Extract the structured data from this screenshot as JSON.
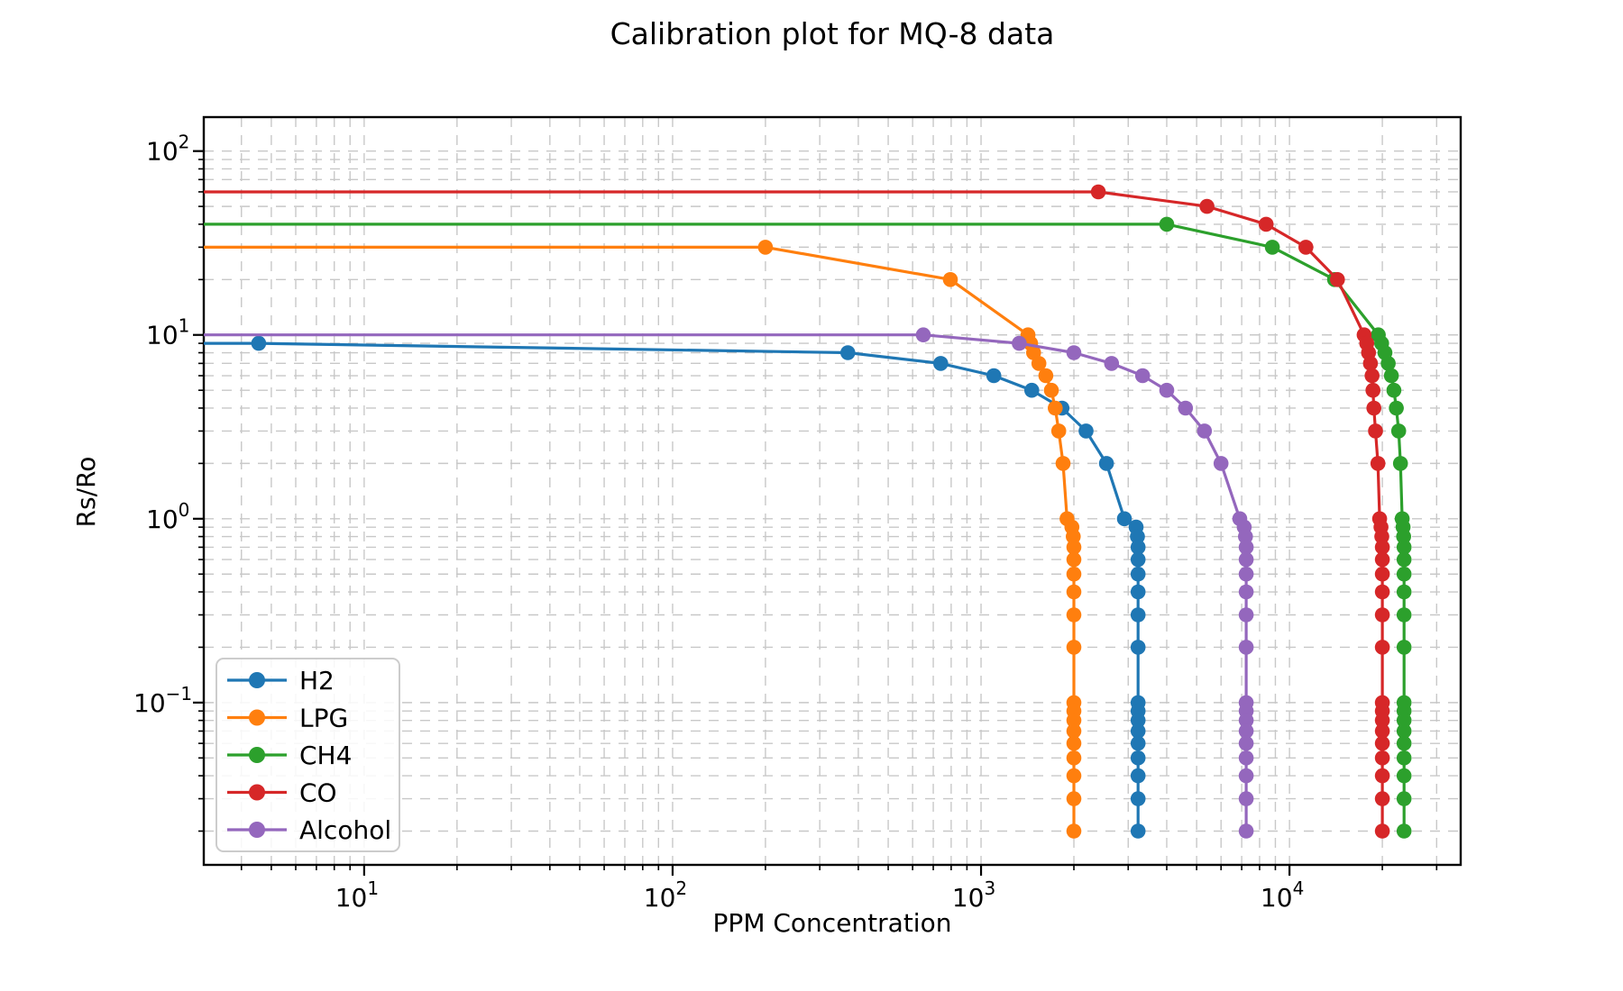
{
  "chart_data": {
    "type": "line",
    "title": "Calibration plot for MQ-8 data",
    "xlabel": "PPM Concentration",
    "ylabel": "Rs/Ro",
    "x_scale": "log",
    "y_scale": "log",
    "xlim": [
      3.02,
      35900
    ],
    "ylim": [
      0.0131,
      153
    ],
    "x_major_tick_exponents": [
      1,
      2,
      3,
      4
    ],
    "y_major_tick_exponents": [
      -1,
      0,
      1,
      2
    ],
    "x_tick_labels": [
      "10^1",
      "10^2",
      "10^3",
      "10^4"
    ],
    "y_tick_labels": [
      "10^-1",
      "10^0",
      "10^1",
      "10^2"
    ],
    "grid": {
      "which": "both",
      "style": "dashed",
      "color": "#c8c8c8"
    },
    "legend_position": "lower-left",
    "marker": "o",
    "rs_ro_marker_ladder": [
      0.02,
      0.03,
      0.04,
      0.05,
      0.06,
      0.07,
      0.08,
      0.09,
      0.1,
      0.2,
      0.3,
      0.4,
      0.5,
      0.6,
      0.7,
      0.8,
      0.9,
      1,
      2,
      3,
      4,
      5,
      6,
      7,
      8,
      9,
      10,
      20,
      30,
      40,
      50,
      60
    ],
    "series": [
      {
        "name": "H2",
        "color": "#1f77b4",
        "max_rs_ro": 9,
        "max_ppm": 3230,
        "points": [
          [
            0.5,
            9
          ],
          [
            4.55,
            9
          ],
          [
            370,
            8
          ],
          [
            740,
            7
          ],
          [
            1100,
            6
          ],
          [
            1460,
            5
          ],
          [
            1830,
            4
          ],
          [
            2190,
            3
          ],
          [
            2550,
            2
          ],
          [
            2915,
            1
          ],
          [
            3182,
            0.9
          ],
          [
            3214,
            0.8
          ],
          [
            3230,
            0.7
          ],
          [
            3230,
            0.6
          ],
          [
            3230,
            0.5
          ],
          [
            3230,
            0.4
          ],
          [
            3230,
            0.3
          ],
          [
            3230,
            0.2
          ],
          [
            3230,
            0.1
          ],
          [
            3230,
            0.09
          ],
          [
            3230,
            0.08
          ],
          [
            3230,
            0.07
          ],
          [
            3230,
            0.06
          ],
          [
            3230,
            0.05
          ],
          [
            3230,
            0.04
          ],
          [
            3230,
            0.03
          ],
          [
            3230,
            0.02
          ]
        ]
      },
      {
        "name": "LPG",
        "color": "#ff7f0e",
        "max_rs_ro": 30,
        "max_ppm": 2000,
        "points": [
          [
            0.5,
            30
          ],
          [
            200,
            30
          ],
          [
            795,
            20
          ],
          [
            1420,
            10
          ],
          [
            1448,
            9
          ],
          [
            1480,
            8
          ],
          [
            1540,
            7
          ],
          [
            1622,
            6
          ],
          [
            1690,
            5
          ],
          [
            1740,
            4
          ],
          [
            1786,
            3
          ],
          [
            1845,
            2
          ],
          [
            1900,
            1
          ],
          [
            1970,
            0.9
          ],
          [
            1990,
            0.8
          ],
          [
            2000,
            0.7
          ],
          [
            2000,
            0.6
          ],
          [
            2000,
            0.5
          ],
          [
            2000,
            0.4
          ],
          [
            2000,
            0.3
          ],
          [
            2000,
            0.2
          ],
          [
            2000,
            0.1
          ],
          [
            2000,
            0.09
          ],
          [
            2000,
            0.08
          ],
          [
            2000,
            0.07
          ],
          [
            2000,
            0.06
          ],
          [
            2000,
            0.05
          ],
          [
            2000,
            0.04
          ],
          [
            2000,
            0.03
          ],
          [
            2000,
            0.02
          ]
        ]
      },
      {
        "name": "CH4",
        "color": "#2ca02c",
        "max_rs_ro": 40,
        "max_ppm": 23520,
        "points": [
          [
            0.5,
            40
          ],
          [
            4000,
            40
          ],
          [
            8800,
            30
          ],
          [
            14000,
            20
          ],
          [
            19400,
            10
          ],
          [
            19900,
            9
          ],
          [
            20400,
            8
          ],
          [
            20900,
            7
          ],
          [
            21400,
            6
          ],
          [
            21800,
            5
          ],
          [
            22200,
            4
          ],
          [
            22600,
            3
          ],
          [
            22900,
            2
          ],
          [
            23200,
            1
          ],
          [
            23350,
            0.9
          ],
          [
            23450,
            0.8
          ],
          [
            23520,
            0.7
          ],
          [
            23520,
            0.6
          ],
          [
            23520,
            0.5
          ],
          [
            23520,
            0.4
          ],
          [
            23520,
            0.3
          ],
          [
            23520,
            0.2
          ],
          [
            23520,
            0.1
          ],
          [
            23520,
            0.09
          ],
          [
            23520,
            0.08
          ],
          [
            23520,
            0.07
          ],
          [
            23520,
            0.06
          ],
          [
            23520,
            0.05
          ],
          [
            23520,
            0.04
          ],
          [
            23520,
            0.03
          ],
          [
            23520,
            0.02
          ]
        ]
      },
      {
        "name": "CO",
        "color": "#d62728",
        "max_rs_ro": 60,
        "max_ppm": 20000,
        "points": [
          [
            0.5,
            60
          ],
          [
            2400,
            60
          ],
          [
            5400,
            50
          ],
          [
            8400,
            40
          ],
          [
            11300,
            30
          ],
          [
            14300,
            20
          ],
          [
            17460,
            10
          ],
          [
            17800,
            9
          ],
          [
            18050,
            8
          ],
          [
            18300,
            7
          ],
          [
            18530,
            6
          ],
          [
            18650,
            5
          ],
          [
            18770,
            4
          ],
          [
            19000,
            3
          ],
          [
            19350,
            2
          ],
          [
            19600,
            1
          ],
          [
            19800,
            0.9
          ],
          [
            19920,
            0.8
          ],
          [
            20000,
            0.7
          ],
          [
            20000,
            0.6
          ],
          [
            20000,
            0.5
          ],
          [
            20000,
            0.4
          ],
          [
            20000,
            0.3
          ],
          [
            20000,
            0.2
          ],
          [
            20000,
            0.1
          ],
          [
            20000,
            0.09
          ],
          [
            20000,
            0.08
          ],
          [
            20000,
            0.07
          ],
          [
            20000,
            0.06
          ],
          [
            20000,
            0.05
          ],
          [
            20000,
            0.04
          ],
          [
            20000,
            0.03
          ],
          [
            20000,
            0.02
          ]
        ]
      },
      {
        "name": "Alcohol",
        "color": "#9467bd",
        "max_rs_ro": 10,
        "max_ppm": 7240,
        "points": [
          [
            0.5,
            10
          ],
          [
            650,
            10
          ],
          [
            1330,
            9
          ],
          [
            2000,
            8
          ],
          [
            2650,
            7
          ],
          [
            3340,
            6
          ],
          [
            4000,
            5
          ],
          [
            4600,
            4
          ],
          [
            5300,
            3
          ],
          [
            6000,
            2
          ],
          [
            6900,
            1
          ],
          [
            7130,
            0.9
          ],
          [
            7200,
            0.8
          ],
          [
            7240,
            0.7
          ],
          [
            7240,
            0.6
          ],
          [
            7240,
            0.5
          ],
          [
            7240,
            0.4
          ],
          [
            7240,
            0.3
          ],
          [
            7240,
            0.2
          ],
          [
            7240,
            0.1
          ],
          [
            7240,
            0.09
          ],
          [
            7240,
            0.08
          ],
          [
            7240,
            0.07
          ],
          [
            7240,
            0.06
          ],
          [
            7240,
            0.05
          ],
          [
            7240,
            0.04
          ],
          [
            7240,
            0.03
          ],
          [
            7240,
            0.02
          ]
        ]
      }
    ]
  }
}
